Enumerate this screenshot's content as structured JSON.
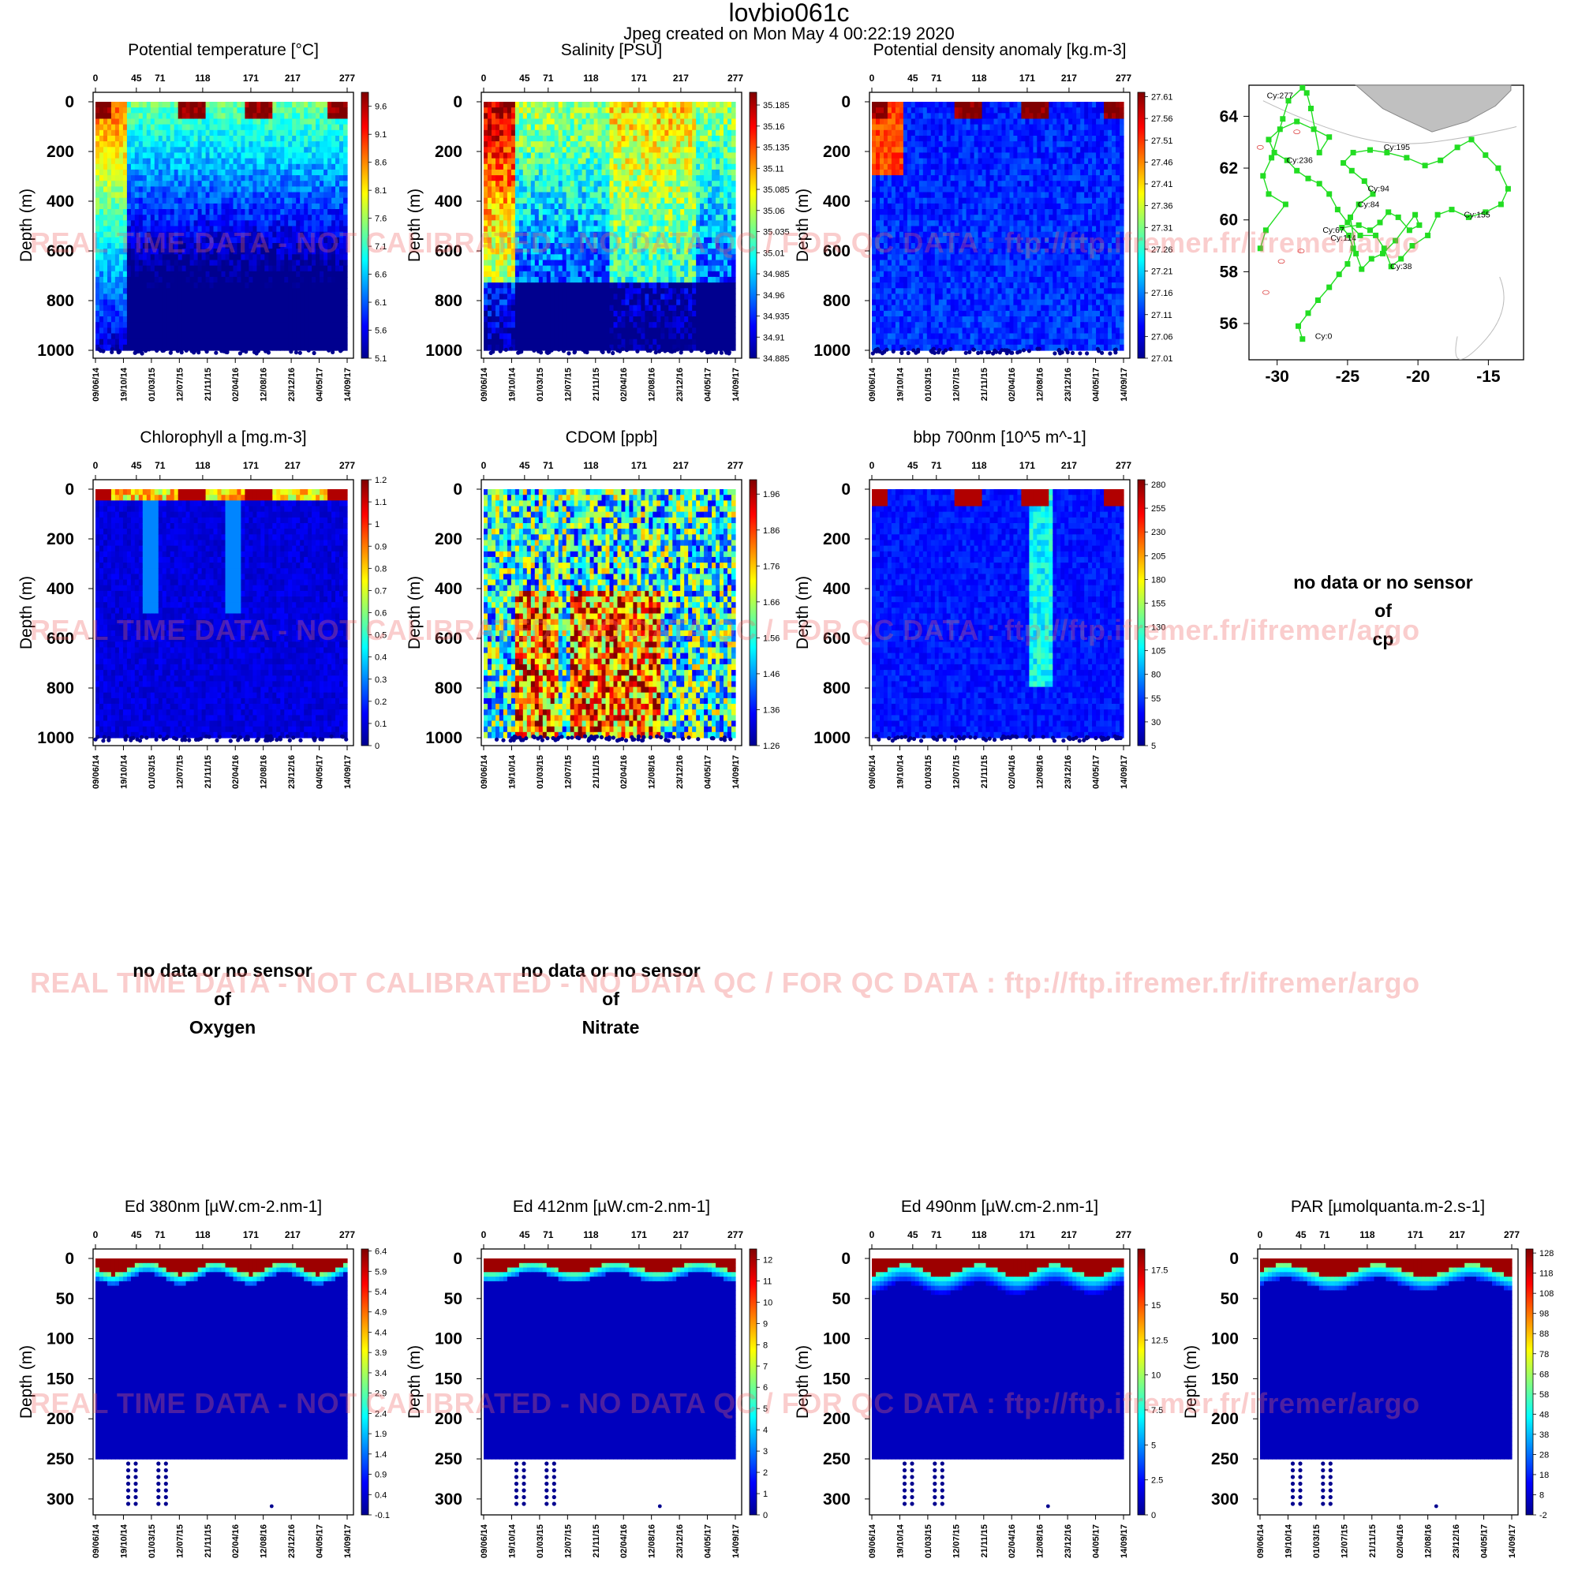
{
  "page": {
    "title": "lovbio061c",
    "subtitle": "Jpeg created on  Mon May  4 00:22:19 2020"
  },
  "watermark": {
    "text": "REAL TIME DATA - NOT CALIBRATED - NO DATA QC   /  FOR QC DATA : ftp://ftp.ifremer.fr/ifremer/argo"
  },
  "common": {
    "cycle_ticks": [
      "0",
      "45",
      "71",
      "118",
      "171",
      "217",
      "277"
    ],
    "date_ticks": [
      "09/06/14",
      "19/10/14",
      "01/03/15",
      "12/07/15",
      "21/11/15",
      "02/04/16",
      "12/08/16",
      "23/12/16",
      "04/05/17",
      "14/09/17"
    ],
    "ylabel": "Depth (m)"
  },
  "chart_data": [
    {
      "id": "temp",
      "type": "heatmap",
      "title": "Potential temperature [°C]",
      "ylabel": "Depth (m)",
      "ylim": [
        1000,
        0
      ],
      "yticks": [
        "0",
        "200",
        "400",
        "600",
        "800",
        "1000"
      ],
      "colorbar": [
        "5.1",
        "5.6",
        "6.1",
        "6.6",
        "7.1",
        "7.6",
        "8.1",
        "8.6",
        "9.1",
        "9.6"
      ],
      "crange": [
        5.1,
        9.85
      ]
    },
    {
      "id": "sal",
      "type": "heatmap",
      "title": "Salinity [PSU]",
      "ylabel": "Depth (m)",
      "ylim": [
        1000,
        0
      ],
      "yticks": [
        "0",
        "200",
        "400",
        "600",
        "800",
        "1000"
      ],
      "colorbar": [
        "34.885",
        "34.91",
        "34.935",
        "34.96",
        "34.985",
        "35.01",
        "35.035",
        "35.06",
        "35.085",
        "35.11",
        "35.135",
        "35.16",
        "35.185"
      ],
      "crange": [
        34.885,
        35.2
      ]
    },
    {
      "id": "dens",
      "type": "heatmap",
      "title": "Potential density anomaly [kg.m-3]",
      "ylabel": "Depth (m)",
      "ylim": [
        1000,
        0
      ],
      "yticks": [
        "0",
        "200",
        "400",
        "600",
        "800",
        "1000"
      ],
      "colorbar": [
        "27.61",
        "27.56",
        "27.51",
        "27.46",
        "27.41",
        "27.36",
        "27.31",
        "27.26",
        "27.21",
        "27.16",
        "27.11",
        "27.06",
        "27.01"
      ],
      "crange": [
        27.01,
        27.62
      ],
      "reversed": true
    },
    {
      "id": "chla",
      "type": "heatmap",
      "title": "Chlorophyll a [mg.m-3]",
      "ylabel": "Depth (m)",
      "ylim": [
        1000,
        0
      ],
      "yticks": [
        "0",
        "200",
        "400",
        "600",
        "800",
        "1000"
      ],
      "colorbar": [
        "0",
        "0.1",
        "0.2",
        "0.3",
        "0.4",
        "0.5",
        "0.6",
        "0.7",
        "0.8",
        "0.9",
        "1",
        "1.1",
        "1.2"
      ],
      "crange": [
        0,
        1.2
      ]
    },
    {
      "id": "cdom",
      "type": "heatmap",
      "title": "CDOM  [ppb]",
      "ylabel": "Depth (m)",
      "ylim": [
        1000,
        0
      ],
      "yticks": [
        "0",
        "200",
        "400",
        "600",
        "800",
        "1000"
      ],
      "colorbar": [
        "1.26",
        "1.36",
        "1.46",
        "1.56",
        "1.66",
        "1.76",
        "1.86",
        "1.96"
      ],
      "crange": [
        1.26,
        2.0
      ]
    },
    {
      "id": "bbp",
      "type": "heatmap",
      "title": "bbp 700nm [10^5 m^-1]",
      "ylabel": "Depth (m)",
      "ylim": [
        1000,
        0
      ],
      "yticks": [
        "0",
        "200",
        "400",
        "600",
        "800",
        "1000"
      ],
      "colorbar": [
        "5",
        "30",
        "55",
        "80",
        "105",
        "130",
        "155",
        "180",
        "205",
        "230",
        "255",
        "280"
      ],
      "crange": [
        5,
        285
      ]
    },
    {
      "id": "ed380",
      "type": "heatmap",
      "title": "Ed 380nm [µW.cm-2.nm-1]",
      "ylabel": "Depth (m)",
      "ylim": [
        310,
        0
      ],
      "yticks": [
        "0",
        "50",
        "100",
        "150",
        "200",
        "250",
        "300"
      ],
      "colorbar": [
        "-0.1",
        "0.4",
        "0.9",
        "1.4",
        "1.9",
        "2.4",
        "2.9",
        "3.4",
        "3.9",
        "4.4",
        "4.9",
        "5.4",
        "5.9",
        "6.4"
      ],
      "crange": [
        -0.1,
        6.45
      ]
    },
    {
      "id": "ed412",
      "type": "heatmap",
      "title": "Ed 412nm [µW.cm-2.nm-1]",
      "ylabel": "Depth (m)",
      "ylim": [
        310,
        0
      ],
      "yticks": [
        "0",
        "50",
        "100",
        "150",
        "200",
        "250",
        "300"
      ],
      "colorbar": [
        "0",
        "1",
        "2",
        "3",
        "4",
        "5",
        "6",
        "7",
        "8",
        "9",
        "10",
        "11",
        "12"
      ],
      "crange": [
        0,
        12.5
      ]
    },
    {
      "id": "ed490",
      "type": "heatmap",
      "title": "Ed 490nm [µW.cm-2.nm-1]",
      "ylabel": "Depth (m)",
      "ylim": [
        310,
        0
      ],
      "yticks": [
        "0",
        "50",
        "100",
        "150",
        "200",
        "250",
        "300"
      ],
      "colorbar": [
        "0",
        "2.5",
        "5",
        "7.5",
        "10",
        "12.5",
        "15",
        "17.5"
      ],
      "crange": [
        0,
        19
      ]
    },
    {
      "id": "par",
      "type": "heatmap",
      "title": "PAR [µmolquanta.m-2.s-1]",
      "ylabel": "Depth (m)",
      "ylim": [
        310,
        0
      ],
      "yticks": [
        "0",
        "50",
        "100",
        "150",
        "200",
        "250",
        "300"
      ],
      "colorbar": [
        "-2",
        "8",
        "18",
        "28",
        "38",
        "48",
        "58",
        "68",
        "78",
        "88",
        "98",
        "108",
        "118",
        "128"
      ],
      "crange": [
        -2,
        130
      ]
    },
    {
      "id": "map",
      "type": "scatter",
      "title": "",
      "xlim": [
        -32,
        -12.5
      ],
      "ylim": [
        54.6,
        65.2
      ],
      "xticks": [
        "-30",
        "-25",
        "-20",
        "-15"
      ],
      "yticks": [
        "56",
        "58",
        "60",
        "62",
        "64"
      ],
      "track": [
        [
          -28.2,
          55.4
        ],
        [
          -28.5,
          55.9
        ],
        [
          -27.8,
          56.4
        ],
        [
          -27.1,
          56.9
        ],
        [
          -26.3,
          57.4
        ],
        [
          -25.6,
          57.9
        ],
        [
          -25.0,
          58.3
        ],
        [
          -24.6,
          58.9
        ],
        [
          -24.9,
          59.4
        ],
        [
          -25.4,
          59.7
        ],
        [
          -24.2,
          59.8
        ],
        [
          -23.4,
          59.6
        ],
        [
          -22.7,
          59.9
        ],
        [
          -22.1,
          60.3
        ],
        [
          -21.4,
          60.1
        ],
        [
          -20.6,
          59.6
        ],
        [
          -19.9,
          59.8
        ],
        [
          -20.2,
          60.2
        ],
        [
          -21.6,
          59.2
        ],
        [
          -22.5,
          58.7
        ],
        [
          -23.3,
          58.5
        ],
        [
          -24.0,
          58.1
        ],
        [
          -24.4,
          58.7
        ],
        [
          -24.8,
          60.1
        ],
        [
          -24.2,
          60.6
        ],
        [
          -23.2,
          61.0
        ],
        [
          -23.8,
          61.5
        ],
        [
          -24.7,
          61.9
        ],
        [
          -25.3,
          62.2
        ],
        [
          -24.6,
          62.6
        ],
        [
          -23.4,
          62.7
        ],
        [
          -22.2,
          62.6
        ],
        [
          -20.8,
          62.4
        ],
        [
          -19.5,
          62.1
        ],
        [
          -18.4,
          62.3
        ],
        [
          -17.2,
          62.8
        ],
        [
          -16.2,
          63.1
        ],
        [
          -15.2,
          62.5
        ],
        [
          -14.3,
          62.0
        ],
        [
          -13.6,
          61.2
        ],
        [
          -14.1,
          60.6
        ],
        [
          -15.2,
          60.3
        ],
        [
          -16.4,
          60.1
        ],
        [
          -17.6,
          60.4
        ],
        [
          -18.6,
          60.2
        ],
        [
          -19.3,
          59.4
        ],
        [
          -20.4,
          59.0
        ],
        [
          -21.2,
          58.5
        ],
        [
          -21.9,
          58.2
        ],
        [
          -22.4,
          58.9
        ],
        [
          -23.0,
          59.4
        ],
        [
          -24.1,
          59.4
        ],
        [
          -25.0,
          59.9
        ],
        [
          -25.7,
          60.4
        ],
        [
          -26.3,
          61.0
        ],
        [
          -27.0,
          61.4
        ],
        [
          -27.8,
          61.6
        ],
        [
          -28.6,
          61.9
        ],
        [
          -29.3,
          62.3
        ],
        [
          -30.2,
          62.6
        ],
        [
          -30.6,
          63.1
        ],
        [
          -29.8,
          63.5
        ],
        [
          -28.6,
          63.8
        ],
        [
          -27.4,
          63.5
        ],
        [
          -26.3,
          63.2
        ],
        [
          -27.0,
          62.6
        ],
        [
          -27.6,
          64.3
        ],
        [
          -27.9,
          64.9
        ],
        [
          -28.2,
          65.1
        ],
        [
          -29.2,
          64.6
        ],
        [
          -29.6,
          63.9
        ],
        [
          -30.4,
          62.4
        ],
        [
          -31.0,
          61.7
        ],
        [
          -30.6,
          61.0
        ],
        [
          -29.4,
          60.6
        ],
        [
          -30.8,
          59.6
        ],
        [
          -31.2,
          58.9
        ]
      ],
      "labels": [
        {
          "text": "Cy:277",
          "x": -29.8,
          "y": 64.7
        },
        {
          "text": "Cy:236",
          "x": -28.4,
          "y": 62.2
        },
        {
          "text": "Cy:195",
          "x": -21.5,
          "y": 62.7
        },
        {
          "text": "Cy:94",
          "x": -22.8,
          "y": 61.1
        },
        {
          "text": "Cy:84",
          "x": -23.5,
          "y": 60.5
        },
        {
          "text": "Cy:155",
          "x": -15.8,
          "y": 60.1
        },
        {
          "text": "Cy:67",
          "x": -26.0,
          "y": 59.5
        },
        {
          "text": "Cy:114",
          "x": -25.3,
          "y": 59.2
        },
        {
          "text": "Cy:38",
          "x": -21.2,
          "y": 58.1
        },
        {
          "text": "Cy:0",
          "x": -26.7,
          "y": 55.4
        }
      ]
    }
  ],
  "nodata": [
    {
      "line1": "no data or no sensor",
      "line2": "of",
      "line3": "cp"
    },
    {
      "line1": "no data or no sensor",
      "line2": "of",
      "line3": "Oxygen"
    },
    {
      "line1": "no data or no sensor",
      "line2": "of",
      "line3": "Nitrate"
    }
  ],
  "colors": {
    "jet": [
      "#00008f",
      "#0000ff",
      "#00ffff",
      "#ffff00",
      "#ff0000",
      "#800000"
    ],
    "track": "#22dd22",
    "land": "#c0c0c0"
  }
}
